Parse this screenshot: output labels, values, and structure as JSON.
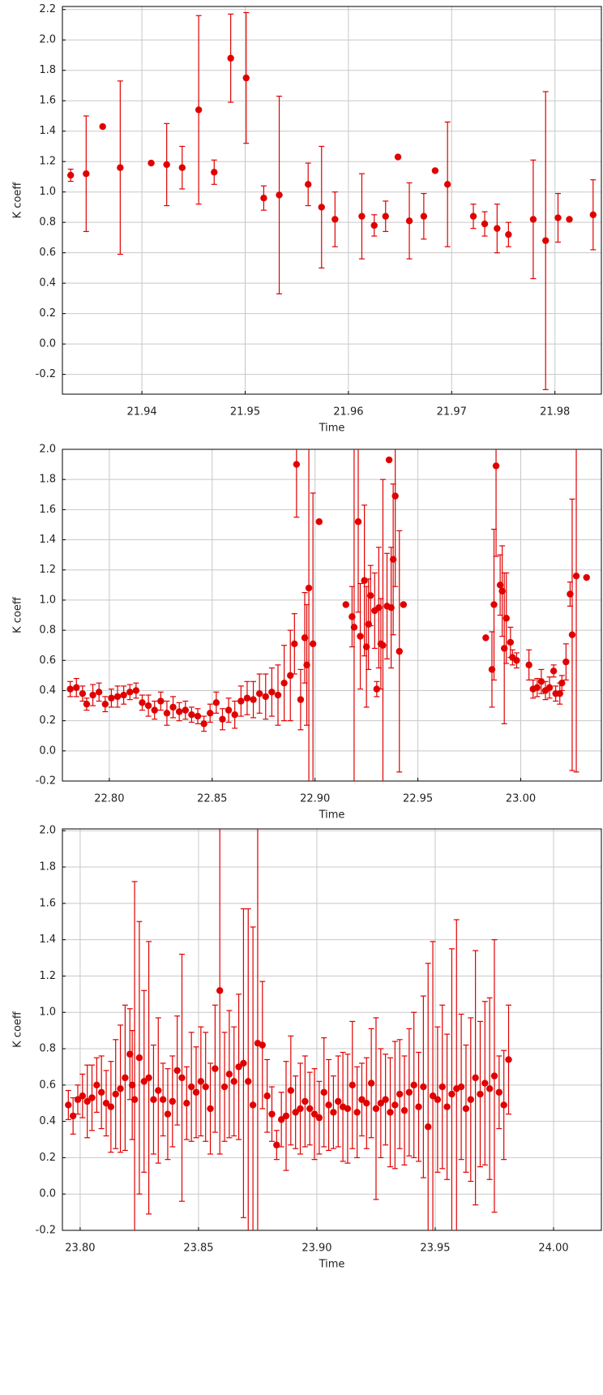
{
  "chart_data": [
    {
      "type": "scatter",
      "xlabel": "Time",
      "ylabel": "K coeff",
      "color": "#e00000",
      "grid": true,
      "xlim": [
        21.9323,
        21.9845
      ],
      "ylim": [
        -0.33,
        2.22
      ],
      "xticks": [
        21.94,
        21.95,
        21.96,
        21.97,
        21.98
      ],
      "yticks": [
        -0.2,
        {
          "value": 0,
          "label": "0.0"
        },
        0.2,
        0.4,
        0.6,
        0.8,
        {
          "value": 1,
          "label": "1.0"
        },
        1.2,
        1.4,
        1.6,
        1.8,
        {
          "value": 2,
          "label": "2.0"
        },
        2.2
      ],
      "x": [
        21.9331,
        21.9346,
        21.9362,
        21.9379,
        21.9409,
        21.9424,
        21.9439,
        21.9455,
        21.947,
        21.9486,
        21.9501,
        21.9518,
        21.9533,
        21.9561,
        21.9574,
        21.9587,
        21.9613,
        21.9625,
        21.9636,
        21.9648,
        21.9659,
        21.9673,
        21.9684,
        21.9696,
        21.9721,
        21.9732,
        21.9744,
        21.9755,
        21.9779,
        21.9791,
        21.9803,
        21.9814,
        21.9837
      ],
      "values": [
        1.11,
        1.12,
        1.43,
        1.16,
        1.19,
        1.18,
        1.16,
        1.54,
        1.13,
        1.88,
        1.75,
        0.96,
        0.98,
        1.05,
        0.9,
        0.82,
        0.84,
        0.78,
        0.84,
        1.23,
        0.81,
        0.84,
        1.14,
        1.05,
        0.84,
        0.79,
        0.76,
        0.72,
        0.82,
        0.68,
        0.83,
        0.82,
        0.85
      ],
      "errors": [
        0.04,
        0.38,
        0,
        0.57,
        0,
        0.27,
        0.14,
        0.62,
        0.08,
        0.29,
        0.43,
        0.08,
        0.65,
        0.14,
        0.4,
        0.18,
        0.28,
        0.07,
        0.1,
        0,
        0.25,
        0.15,
        0,
        0.41,
        0.08,
        0.08,
        0.16,
        0.08,
        0.39,
        0.98,
        0.16,
        0,
        0.23
      ]
    },
    {
      "type": "scatter",
      "xlabel": "Time",
      "ylabel": "K coeff",
      "color": "#e00000",
      "grid": true,
      "xlim": [
        22.7772,
        23.0392
      ],
      "ylim": [
        -0.2,
        2.0
      ],
      "xticks": [
        {
          "value": 22.8,
          "label": "22.80"
        },
        22.85,
        {
          "value": 22.9,
          "label": "22.90"
        },
        22.95,
        {
          "value": 23,
          "label": "23.00"
        }
      ],
      "yticks": [
        -0.2,
        {
          "value": 0,
          "label": "0.0"
        },
        0.2,
        0.4,
        0.6,
        0.8,
        {
          "value": 1,
          "label": "1.0"
        },
        1.2,
        1.4,
        1.6,
        1.8,
        {
          "value": 2,
          "label": "2.0"
        }
      ],
      "x": [
        22.781,
        22.784,
        22.787,
        22.789,
        22.792,
        22.795,
        22.798,
        22.801,
        22.804,
        22.807,
        22.81,
        22.813,
        22.816,
        22.819,
        22.822,
        22.825,
        22.828,
        22.831,
        22.834,
        22.837,
        22.84,
        22.843,
        22.846,
        22.849,
        22.852,
        22.855,
        22.858,
        22.861,
        22.864,
        22.867,
        22.87,
        22.873,
        22.876,
        22.879,
        22.882,
        22.885,
        22.888,
        22.89,
        22.891,
        22.893,
        22.895,
        22.896,
        22.897,
        22.899,
        22.902,
        22.915,
        22.918,
        22.919,
        22.921,
        22.922,
        22.924,
        22.925,
        22.926,
        22.927,
        22.929,
        22.93,
        22.931,
        22.932,
        22.933,
        22.935,
        22.936,
        22.937,
        22.938,
        22.939,
        22.941,
        22.943,
        22.983,
        22.986,
        22.987,
        22.988,
        22.99,
        22.991,
        22.992,
        22.993,
        22.995,
        22.996,
        22.998,
        23.004,
        23.006,
        23.008,
        23.01,
        23.012,
        23.014,
        23.016,
        23.017,
        23.019,
        23.02,
        23.022,
        23.024,
        23.025,
        23.027,
        23.032
      ],
      "values": [
        0.41,
        0.42,
        0.38,
        0.31,
        0.37,
        0.39,
        0.31,
        0.35,
        0.36,
        0.37,
        0.39,
        0.4,
        0.32,
        0.3,
        0.27,
        0.33,
        0.25,
        0.29,
        0.26,
        0.27,
        0.24,
        0.23,
        0.18,
        0.25,
        0.32,
        0.21,
        0.27,
        0.24,
        0.33,
        0.35,
        0.34,
        0.38,
        0.36,
        0.39,
        0.37,
        0.45,
        0.5,
        0.71,
        1.9,
        0.34,
        0.75,
        0.57,
        1.08,
        0.71,
        1.52,
        0.97,
        0.89,
        0.82,
        1.52,
        0.76,
        1.13,
        0.69,
        0.84,
        1.03,
        0.93,
        0.41,
        0.95,
        0.71,
        0.7,
        0.96,
        1.93,
        0.95,
        1.27,
        1.69,
        0.66,
        0.97,
        0.75,
        0.54,
        0.97,
        1.89,
        1.1,
        1.06,
        0.68,
        0.88,
        0.72,
        0.62,
        0.6,
        0.57,
        0.41,
        0.42,
        0.46,
        0.4,
        0.42,
        0.53,
        0.38,
        0.38,
        0.45,
        0.59,
        1.04,
        0.77,
        1.16,
        1.15
      ],
      "errors": [
        0.05,
        0.06,
        0.05,
        0.04,
        0.07,
        0.06,
        0.05,
        0.06,
        0.07,
        0.06,
        0.05,
        0.05,
        0.05,
        0.07,
        0.06,
        0.06,
        0.08,
        0.07,
        0.06,
        0.06,
        0.05,
        0.05,
        0.05,
        0.06,
        0.07,
        0.07,
        0.08,
        0.09,
        0.1,
        0.11,
        0.12,
        0.13,
        0.15,
        0.16,
        0.2,
        0.25,
        0.3,
        0.2,
        0.35,
        0.2,
        0.3,
        0.4,
        1.4,
        1.0,
        0,
        0,
        0.2,
        1.2,
        0.6,
        0.35,
        0.5,
        0.4,
        0.3,
        0.2,
        0.25,
        0.05,
        0.4,
        0.3,
        1.1,
        0.35,
        0,
        0.4,
        0.5,
        0.6,
        0.8,
        0,
        0,
        0.25,
        0.5,
        0.6,
        0.2,
        0.3,
        0.5,
        0.3,
        0.1,
        0.05,
        0.05,
        0.1,
        0.06,
        0.06,
        0.08,
        0.06,
        0.07,
        0.04,
        0.05,
        0.07,
        0.05,
        0.12,
        0.08,
        0.9,
        1.3,
        0
      ]
    },
    {
      "type": "scatter",
      "xlabel": "Time",
      "ylabel": "K coeff",
      "color": "#e00000",
      "grid": true,
      "xlim": [
        23.7925,
        24.0202
      ],
      "ylim": [
        -0.2,
        2.01
      ],
      "xticks": [
        {
          "value": 23.8,
          "label": "23.80"
        },
        23.85,
        {
          "value": 23.9,
          "label": "23.90"
        },
        23.95,
        {
          "value": 24,
          "label": "24.00"
        }
      ],
      "yticks": [
        -0.2,
        {
          "value": 0,
          "label": "0.0"
        },
        0.2,
        0.4,
        0.6,
        0.8,
        {
          "value": 1,
          "label": "1.0"
        },
        1.2,
        1.4,
        1.6,
        1.8,
        {
          "value": 2,
          "label": "2.0"
        }
      ],
      "x": [
        23.795,
        23.797,
        23.799,
        23.801,
        23.803,
        23.805,
        23.807,
        23.809,
        23.811,
        23.813,
        23.815,
        23.817,
        23.819,
        23.821,
        23.822,
        23.823,
        23.825,
        23.827,
        23.829,
        23.831,
        23.833,
        23.835,
        23.837,
        23.839,
        23.841,
        23.843,
        23.845,
        23.847,
        23.849,
        23.851,
        23.853,
        23.855,
        23.857,
        23.859,
        23.861,
        23.863,
        23.865,
        23.867,
        23.869,
        23.871,
        23.873,
        23.875,
        23.877,
        23.879,
        23.881,
        23.883,
        23.885,
        23.887,
        23.889,
        23.891,
        23.893,
        23.895,
        23.897,
        23.899,
        23.901,
        23.903,
        23.905,
        23.907,
        23.909,
        23.911,
        23.913,
        23.915,
        23.917,
        23.919,
        23.921,
        23.923,
        23.925,
        23.927,
        23.929,
        23.931,
        23.933,
        23.935,
        23.937,
        23.939,
        23.941,
        23.943,
        23.945,
        23.947,
        23.949,
        23.951,
        23.953,
        23.955,
        23.957,
        23.959,
        23.961,
        23.963,
        23.965,
        23.967,
        23.969,
        23.971,
        23.973,
        23.975,
        23.977,
        23.979,
        23.981
      ],
      "values": [
        0.49,
        0.43,
        0.52,
        0.54,
        0.51,
        0.53,
        0.6,
        0.56,
        0.5,
        0.48,
        0.55,
        0.58,
        0.64,
        0.77,
        0.6,
        0.52,
        0.75,
        0.62,
        0.64,
        0.52,
        0.57,
        0.52,
        0.44,
        0.51,
        0.68,
        0.64,
        0.5,
        0.59,
        0.56,
        0.62,
        0.59,
        0.47,
        0.69,
        1.12,
        0.59,
        0.66,
        0.62,
        0.7,
        0.72,
        0.62,
        0.49,
        0.83,
        0.82,
        0.54,
        0.44,
        0.27,
        0.41,
        0.43,
        0.57,
        0.45,
        0.47,
        0.51,
        0.47,
        0.44,
        0.42,
        0.56,
        0.49,
        0.45,
        0.51,
        0.48,
        0.47,
        0.6,
        0.45,
        0.52,
        0.5,
        0.61,
        0.47,
        0.5,
        0.52,
        0.45,
        0.49,
        0.55,
        0.46,
        0.56,
        0.6,
        0.48,
        0.59,
        0.37,
        0.54,
        0.52,
        0.59,
        0.48,
        0.55,
        0.58,
        0.59,
        0.47,
        0.52,
        0.64,
        0.55,
        0.61,
        0.58,
        0.65,
        0.56,
        0.49,
        0.74
      ],
      "errors": [
        0.08,
        0.1,
        0.08,
        0.12,
        0.2,
        0.18,
        0.15,
        0.2,
        0.18,
        0.25,
        0.3,
        0.35,
        0.4,
        0.25,
        0.3,
        1.2,
        0.75,
        0.5,
        0.75,
        0.3,
        0.4,
        0.2,
        0.25,
        0.25,
        0.3,
        0.68,
        0.2,
        0.3,
        0.25,
        0.3,
        0.3,
        0.25,
        0.35,
        0.9,
        0.3,
        0.35,
        0.3,
        0.4,
        0.85,
        0.95,
        0.98,
        1.2,
        0.35,
        0.2,
        0.15,
        0.08,
        0.15,
        0.3,
        0.3,
        0.2,
        0.25,
        0.25,
        0.2,
        0.25,
        0.2,
        0.3,
        0.25,
        0.2,
        0.25,
        0.3,
        0.3,
        0.35,
        0.25,
        0.2,
        0.25,
        0.3,
        0.5,
        0.3,
        0.25,
        0.3,
        0.35,
        0.3,
        0.3,
        0.35,
        0.4,
        0.3,
        0.5,
        0.9,
        0.85,
        0.4,
        0.45,
        0.4,
        0.8,
        0.93,
        0.4,
        0.35,
        0.45,
        0.7,
        0.4,
        0.45,
        0.5,
        0.75,
        0.2,
        0.3,
        0.3
      ]
    }
  ]
}
